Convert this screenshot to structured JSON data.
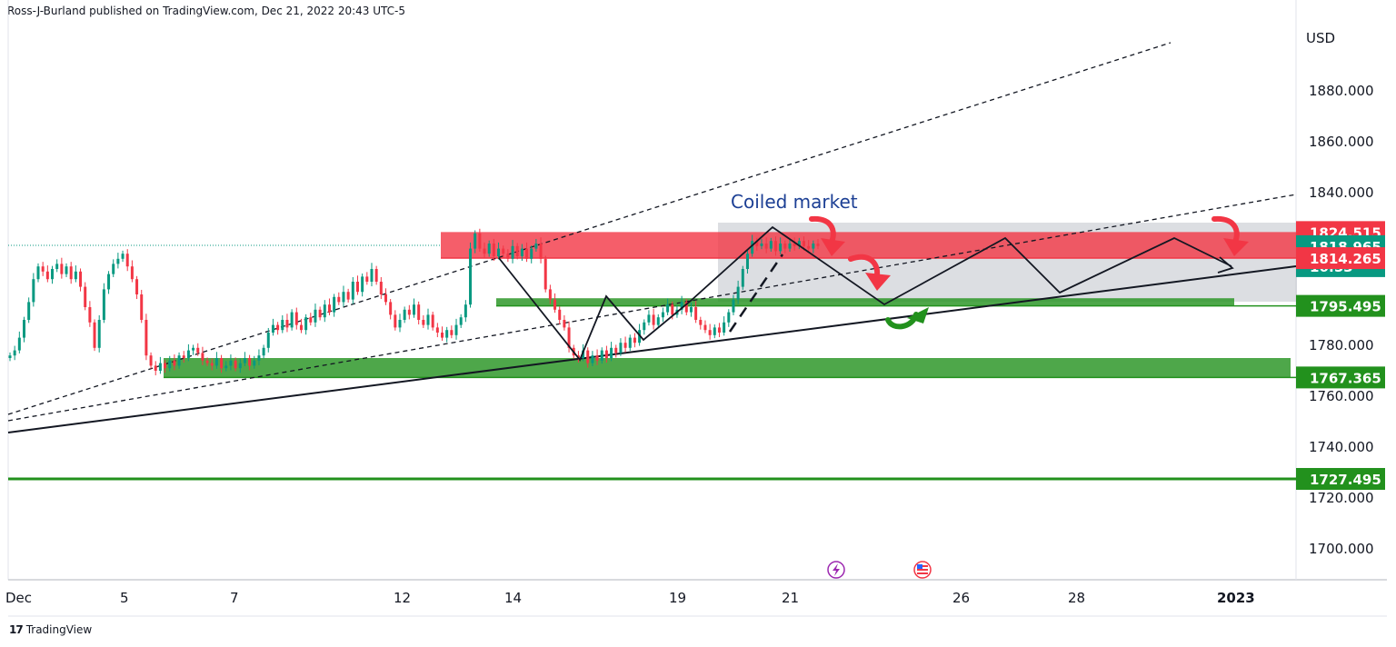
{
  "header": {
    "text": "Ross-J-Burland published on TradingView.com, Dec 21, 2022 20:43 UTC-5"
  },
  "footer": {
    "logo": "17",
    "brand": "TradingView"
  },
  "chart_data": {
    "type": "candlestick",
    "currency_label": "USD",
    "annotation": "Coiled market",
    "y_ticks": [
      1880,
      1860,
      1840,
      1780,
      1760,
      1740,
      1720,
      1700
    ],
    "y_tick_labels": [
      "1880.000",
      "1860.000",
      "1840.000",
      "1780.000",
      "1760.000",
      "1740.000",
      "1720.000",
      "1700.000"
    ],
    "x_tick_labels": [
      "Dec",
      "5",
      "7",
      "12",
      "14",
      "19",
      "21",
      "26",
      "28",
      "2023"
    ],
    "price_tags": [
      {
        "label": "1824.515",
        "value": 1824.515,
        "color": "#f23645"
      },
      {
        "label": "1818.965",
        "value": 1818.965,
        "color": "#089981",
        "countdown": "16:53"
      },
      {
        "label": "1814.265",
        "value": 1814.265,
        "color": "#f23645"
      },
      {
        "label": "1795.495",
        "value": 1795.495,
        "color": "#22911d"
      },
      {
        "label": "1767.365",
        "value": 1767.365,
        "color": "#22911d"
      },
      {
        "label": "1727.495",
        "value": 1727.495,
        "color": "#22911d"
      }
    ],
    "current_price": 1818.965,
    "zones": [
      {
        "type": "resistance",
        "from": 1814.265,
        "to": 1824.515,
        "color": "#f23645"
      },
      {
        "type": "support",
        "from": 1795.495,
        "to": 1798.5,
        "color": "#22911d"
      },
      {
        "type": "support",
        "from": 1767.365,
        "to": 1775,
        "color": "#22911d"
      },
      {
        "type": "support-line",
        "value": 1727.495,
        "color": "#22911d"
      }
    ],
    "candles_close": [
      1776,
      1778,
      1783,
      1790,
      1797,
      1806,
      1811,
      1809,
      1806,
      1810,
      1812,
      1808,
      1811,
      1806,
      1809,
      1803,
      1795,
      1789,
      1779,
      1790,
      1802,
      1808,
      1812,
      1814,
      1816,
      1811,
      1806,
      1800,
      1790,
      1776,
      1772,
      1770,
      1773,
      1771,
      1774,
      1772,
      1776,
      1775,
      1778,
      1779,
      1777,
      1774,
      1773,
      1772,
      1775,
      1771,
      1772,
      1774,
      1771,
      1773,
      1775,
      1772,
      1774,
      1776,
      1779,
      1785,
      1788,
      1786,
      1790,
      1787,
      1793,
      1788,
      1786,
      1791,
      1789,
      1794,
      1791,
      1796,
      1793,
      1799,
      1797,
      1801,
      1798,
      1805,
      1801,
      1807,
      1805,
      1810,
      1805,
      1800,
      1797,
      1792,
      1787,
      1790,
      1794,
      1792,
      1796,
      1790,
      1788,
      1792,
      1787,
      1785,
      1783,
      1786,
      1784,
      1788,
      1791,
      1796,
      1818,
      1824,
      1818,
      1816,
      1820,
      1815,
      1818,
      1816,
      1814,
      1819,
      1815,
      1818,
      1814,
      1818,
      1820,
      1814,
      1802,
      1798,
      1794,
      1790,
      1787,
      1779,
      1776,
      1775,
      1778,
      1773,
      1776,
      1774,
      1778,
      1775,
      1779,
      1777,
      1781,
      1779,
      1783,
      1781,
      1786,
      1789,
      1792,
      1788,
      1791,
      1793,
      1796,
      1792,
      1794,
      1797,
      1793,
      1795,
      1790,
      1788,
      1786,
      1784,
      1787,
      1785,
      1789,
      1793,
      1798,
      1803,
      1810,
      1816,
      1821,
      1819,
      1820,
      1818,
      1821,
      1817,
      1820,
      1818,
      1820,
      1819,
      1821,
      1819,
      1818,
      1820,
      1819
    ]
  }
}
